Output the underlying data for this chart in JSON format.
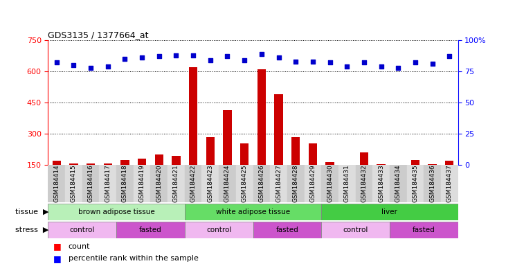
{
  "title": "GDS3135 / 1377664_at",
  "samples": [
    "GSM184414",
    "GSM184415",
    "GSM184416",
    "GSM184417",
    "GSM184418",
    "GSM184419",
    "GSM184420",
    "GSM184421",
    "GSM184422",
    "GSM184423",
    "GSM184424",
    "GSM184425",
    "GSM184426",
    "GSM184427",
    "GSM184428",
    "GSM184429",
    "GSM184430",
    "GSM184431",
    "GSM184432",
    "GSM184433",
    "GSM184434",
    "GSM184435",
    "GSM184436",
    "GSM184437"
  ],
  "counts": [
    170,
    158,
    157,
    157,
    175,
    180,
    200,
    195,
    620,
    285,
    415,
    255,
    610,
    490,
    285,
    255,
    165,
    145,
    210,
    155,
    152,
    175,
    155,
    170
  ],
  "percentiles": [
    82,
    80,
    78,
    79,
    85,
    86,
    87,
    88,
    88,
    84,
    87,
    84,
    89,
    86,
    83,
    83,
    82,
    79,
    82,
    79,
    78,
    82,
    81,
    87
  ],
  "tissues": [
    {
      "label": "brown adipose tissue",
      "start": 0,
      "end": 8,
      "color": "#b8f0b8"
    },
    {
      "label": "white adipose tissue",
      "start": 8,
      "end": 16,
      "color": "#66dd66"
    },
    {
      "label": "liver",
      "start": 16,
      "end": 24,
      "color": "#44cc44"
    }
  ],
  "stresses": [
    {
      "label": "control",
      "start": 0,
      "end": 4,
      "color": "#f0b8f0"
    },
    {
      "label": "fasted",
      "start": 4,
      "end": 8,
      "color": "#cc55cc"
    },
    {
      "label": "control",
      "start": 8,
      "end": 12,
      "color": "#f0b8f0"
    },
    {
      "label": "fasted",
      "start": 12,
      "end": 16,
      "color": "#cc55cc"
    },
    {
      "label": "control",
      "start": 16,
      "end": 20,
      "color": "#f0b8f0"
    },
    {
      "label": "fasted",
      "start": 20,
      "end": 24,
      "color": "#cc55cc"
    }
  ],
  "ylim_left": [
    150,
    750
  ],
  "yticks_left": [
    150,
    300,
    450,
    600,
    750
  ],
  "ylim_right": [
    0,
    100
  ],
  "yticks_right": [
    0,
    25,
    50,
    75,
    100
  ],
  "bar_color": "#cc0000",
  "dot_color": "#0000cc",
  "bar_width": 0.5
}
